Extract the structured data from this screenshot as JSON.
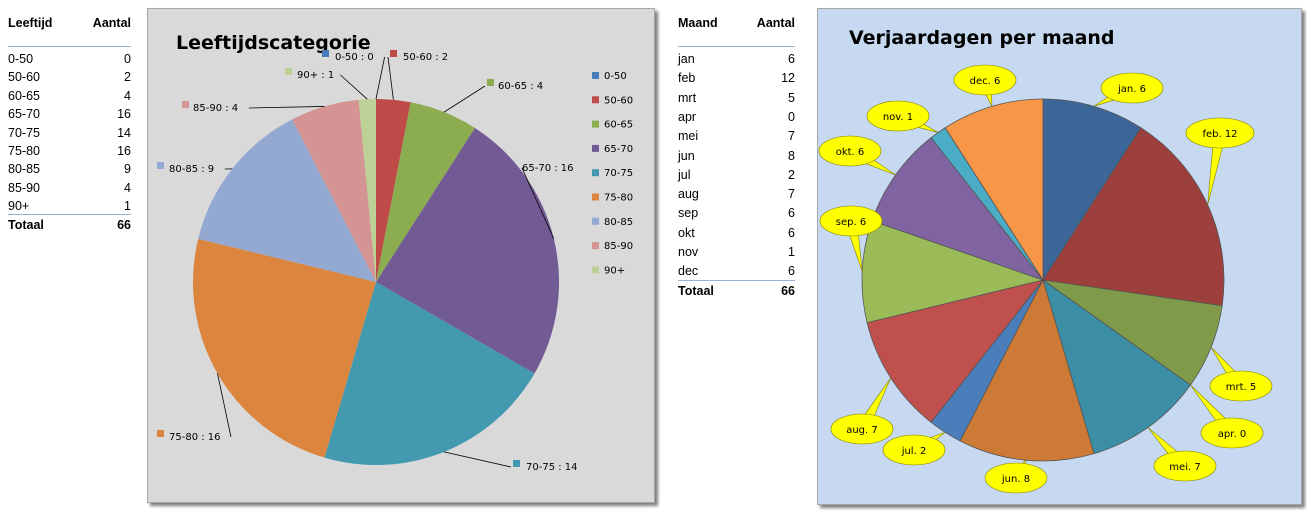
{
  "age_table": {
    "headers": [
      "Leeftijd",
      "Aantal"
    ],
    "rows": [
      [
        "0-50",
        "0"
      ],
      [
        "50-60",
        "2"
      ],
      [
        "60-65",
        "4"
      ],
      [
        "65-70",
        "16"
      ],
      [
        "70-75",
        "14"
      ],
      [
        "75-80",
        "16"
      ],
      [
        "80-85",
        "9"
      ],
      [
        "85-90",
        "4"
      ],
      [
        "90+",
        "1"
      ]
    ],
    "total_label": "Totaal",
    "total_value": "66"
  },
  "month_table": {
    "headers": [
      "Maand",
      "Aantal"
    ],
    "rows": [
      [
        "jan",
        "6"
      ],
      [
        "feb",
        "12"
      ],
      [
        "mrt",
        "5"
      ],
      [
        "apr",
        "0"
      ],
      [
        "mei",
        "7"
      ],
      [
        "jun",
        "8"
      ],
      [
        "jul",
        "2"
      ],
      [
        "aug",
        "7"
      ],
      [
        "sep",
        "6"
      ],
      [
        "okt",
        "6"
      ],
      [
        "nov",
        "1"
      ],
      [
        "dec",
        "6"
      ]
    ],
    "total_label": "Totaal",
    "total_value": "66"
  },
  "chart_data": [
    {
      "type": "pie",
      "title": "Leeftijdscategorie",
      "categories": [
        "0-50",
        "50-60",
        "60-65",
        "65-70",
        "70-75",
        "75-80",
        "80-85",
        "85-90",
        "90+"
      ],
      "values": [
        0,
        2,
        4,
        16,
        14,
        16,
        9,
        4,
        1
      ],
      "data_labels": [
        "0-50 : 0",
        "50-60 : 2",
        "60-65 : 4",
        "65-70 : 16",
        "70-75 : 14",
        "75-80 : 16",
        "80-85 : 9",
        "85-90 : 4",
        "90+ : 1"
      ],
      "colors": [
        "#4a7ebb",
        "#be4b48",
        "#8cac50",
        "#725a94",
        "#4299b0",
        "#dc853e",
        "#93a9d1",
        "#d39493",
        "#bcd196"
      ],
      "legend": "right",
      "background": "#d9d9d9"
    },
    {
      "type": "pie",
      "title": "Verjaardagen per maand",
      "categories": [
        "jan",
        "feb",
        "mrt",
        "apr",
        "mei",
        "jun",
        "jul",
        "aug",
        "sep",
        "okt",
        "nov",
        "dec"
      ],
      "values": [
        6,
        12,
        5,
        0,
        7,
        8,
        2,
        7,
        6,
        6,
        1,
        6
      ],
      "data_labels": [
        "jan. 6",
        "feb. 12",
        "mrt. 5",
        "apr. 0",
        "mei. 7",
        "jun. 8",
        "jul. 2",
        "aug. 7",
        "sep. 6",
        "okt. 6",
        "nov. 1",
        "dec. 6"
      ],
      "colors": [
        "#3d6698",
        "#9d3f3d",
        "#7f9b49",
        "#634f7f",
        "#3b8ea5",
        "#cc7a35",
        "#4a7ebb",
        "#c0504d",
        "#9bbb59",
        "#8064a2",
        "#4bacc6",
        "#f79646"
      ],
      "legend": "none",
      "background": "#c6d9f1",
      "callout_color": "#ffff00"
    }
  ]
}
